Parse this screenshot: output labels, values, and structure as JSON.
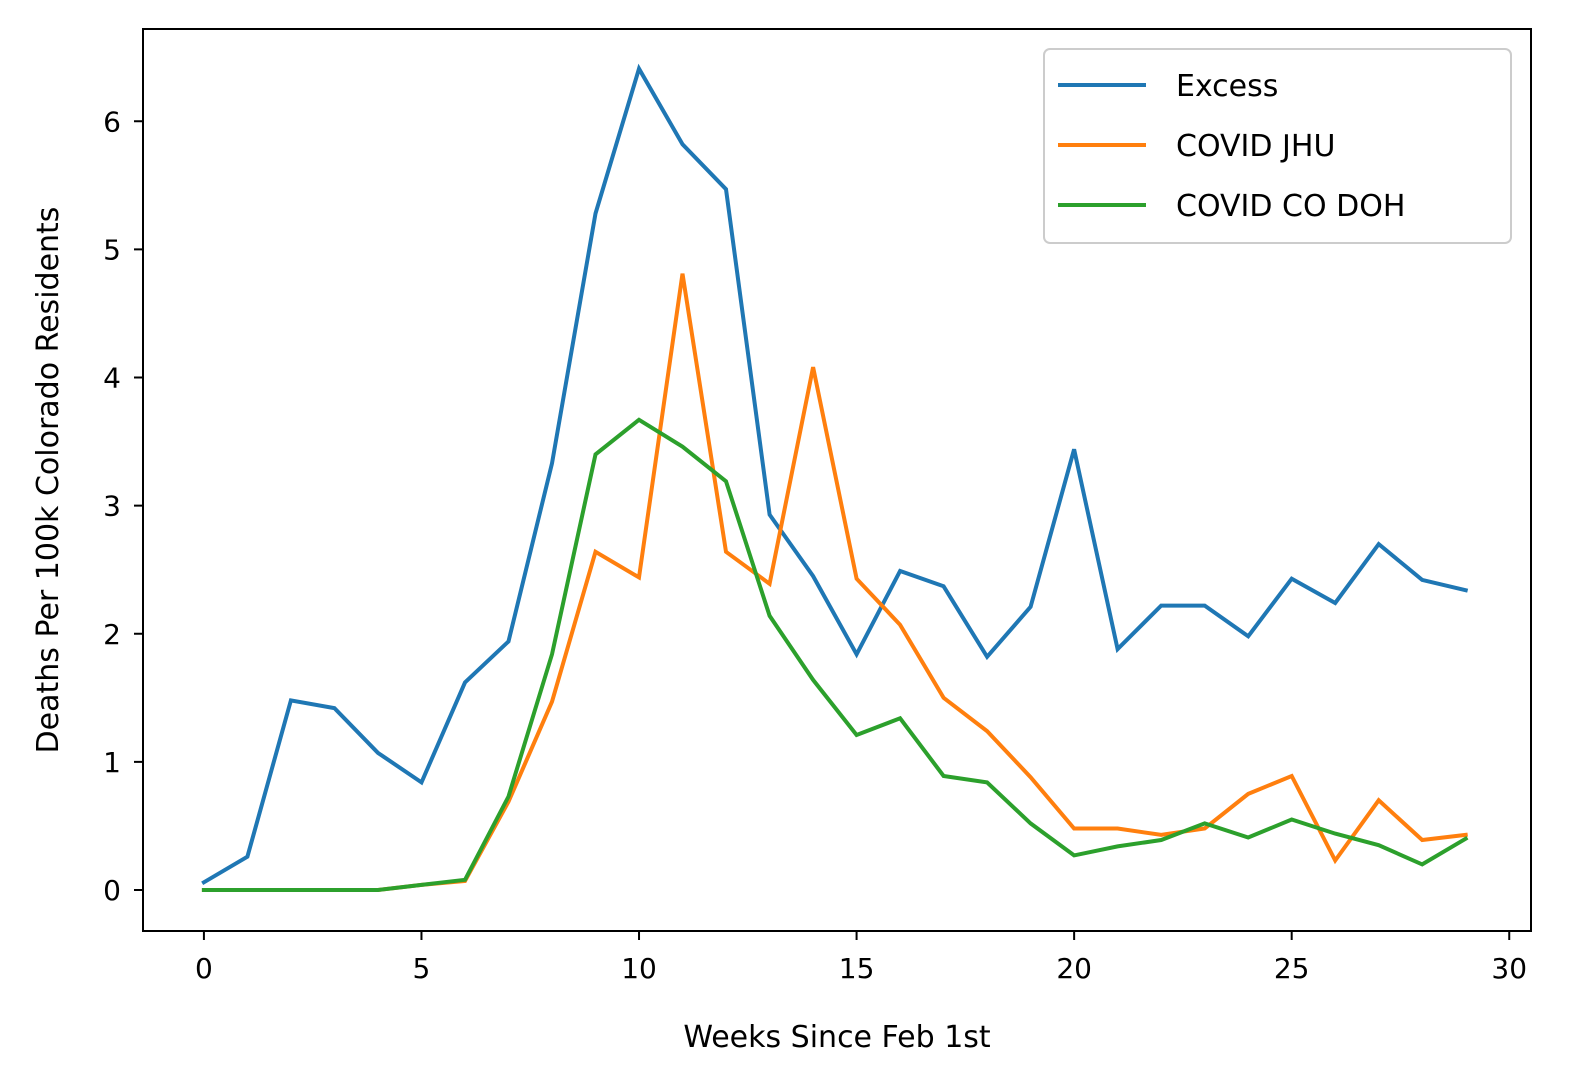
{
  "chart_data": {
    "type": "line",
    "xlabel": "Weeks Since Feb 1st",
    "ylabel": "Deaths Per 100k Colorado Residents",
    "xlim": [
      -1.4,
      30.5
    ],
    "ylim": [
      -0.32,
      6.72
    ],
    "xticks": [
      0,
      5,
      10,
      15,
      20,
      25,
      30
    ],
    "yticks": [
      0,
      1,
      2,
      3,
      4,
      5,
      6
    ],
    "grid": false,
    "legend_position": "top-right",
    "x": [
      0,
      1,
      2,
      3,
      4,
      5,
      6,
      7,
      8,
      9,
      10,
      11,
      12,
      13,
      14,
      15,
      16,
      17,
      18,
      19,
      20,
      21,
      22,
      23,
      24,
      25,
      26,
      27,
      28,
      29
    ],
    "series": [
      {
        "name": "Excess",
        "color": "#1f77b4",
        "values": [
          0.06,
          0.26,
          1.48,
          1.42,
          1.07,
          0.84,
          1.62,
          1.94,
          3.33,
          5.28,
          6.41,
          5.82,
          5.47,
          2.93,
          2.45,
          1.84,
          2.49,
          2.37,
          1.82,
          2.21,
          3.44,
          1.88,
          2.22,
          2.22,
          1.98,
          2.43,
          2.24,
          2.7,
          2.42,
          2.34
        ]
      },
      {
        "name": "COVID JHU",
        "color": "#ff7f0e",
        "values": [
          0.0,
          0.0,
          0.0,
          0.0,
          0.0,
          0.04,
          0.07,
          0.69,
          1.47,
          2.64,
          2.44,
          4.81,
          2.64,
          2.39,
          4.08,
          2.43,
          2.07,
          1.5,
          1.24,
          0.88,
          0.48,
          0.48,
          0.43,
          0.48,
          0.75,
          0.89,
          0.23,
          0.7,
          0.39,
          0.43
        ]
      },
      {
        "name": "COVID CO DOH",
        "color": "#2ca02c",
        "values": [
          0.0,
          0.0,
          0.0,
          0.0,
          0.0,
          0.04,
          0.08,
          0.73,
          1.84,
          3.4,
          3.67,
          3.46,
          3.19,
          2.14,
          1.64,
          1.21,
          1.34,
          0.89,
          0.84,
          0.52,
          0.27,
          0.34,
          0.39,
          0.52,
          0.41,
          0.55,
          0.44,
          0.35,
          0.2,
          0.4
        ]
      }
    ]
  }
}
